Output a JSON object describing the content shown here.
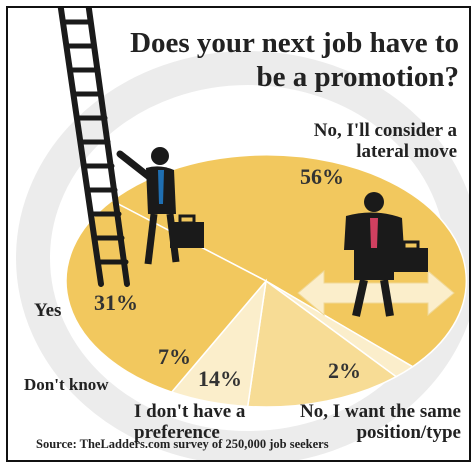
{
  "title": "Does your next job have to be a promotion?",
  "source": "Source: TheLadders.com survey of 250,000 job seekers",
  "colors": {
    "pie_main": "#f2c85e",
    "pie_light": "#f7dc95",
    "pie_pale": "#fbeecb",
    "figure": "#1a1a1a",
    "tie_yes": "#1f6fb2",
    "tie_no": "#d04060",
    "arrow": "#fbeecb"
  },
  "chart_data": {
    "type": "pie",
    "title": "Does your next job have to be a promotion?",
    "slices": [
      {
        "label": "No, I'll consider a lateral move",
        "value": 56,
        "display": "56%"
      },
      {
        "label": "Yes",
        "value": 31,
        "display": "31%"
      },
      {
        "label": "Don't know",
        "value": 7,
        "display": "7%"
      },
      {
        "label": "I don't have a preference",
        "value": 14,
        "display": "14%"
      },
      {
        "label": "No, I want the same position/type",
        "value": 2,
        "display": "2%"
      }
    ],
    "source": "Source: TheLadders.com survey of 250,000 job seekers"
  }
}
